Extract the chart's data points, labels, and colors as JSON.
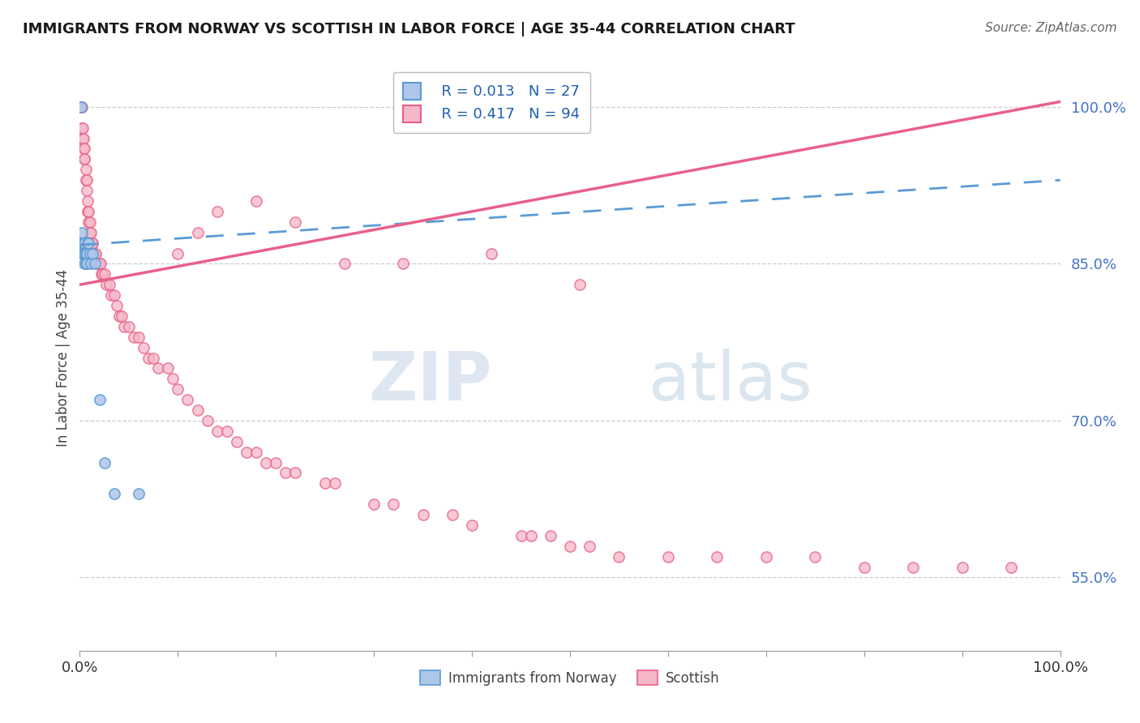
{
  "title": "IMMIGRANTS FROM NORWAY VS SCOTTISH IN LABOR FORCE | AGE 35-44 CORRELATION CHART",
  "source": "Source: ZipAtlas.com",
  "ylabel": "In Labor Force | Age 35-44",
  "xlim": [
    0.0,
    1.0
  ],
  "ylim": [
    0.48,
    1.04
  ],
  "yticks": [
    0.55,
    0.7,
    0.85,
    1.0
  ],
  "ytick_labels": [
    "55.0%",
    "70.0%",
    "85.0%",
    "100.0%"
  ],
  "norway_x": [
    0.001,
    0.002,
    0.002,
    0.003,
    0.003,
    0.003,
    0.004,
    0.004,
    0.004,
    0.005,
    0.005,
    0.005,
    0.005,
    0.006,
    0.006,
    0.007,
    0.007,
    0.008,
    0.009,
    0.01,
    0.011,
    0.013,
    0.015,
    0.02,
    0.025,
    0.035,
    0.06
  ],
  "norway_y": [
    1.0,
    0.88,
    0.87,
    0.87,
    0.86,
    0.86,
    0.86,
    0.86,
    0.86,
    0.87,
    0.86,
    0.86,
    0.85,
    0.86,
    0.85,
    0.86,
    0.85,
    0.87,
    0.87,
    0.86,
    0.85,
    0.86,
    0.85,
    0.72,
    0.66,
    0.63,
    0.63
  ],
  "scottish_x": [
    0.001,
    0.002,
    0.002,
    0.003,
    0.003,
    0.004,
    0.004,
    0.005,
    0.005,
    0.005,
    0.006,
    0.006,
    0.007,
    0.007,
    0.008,
    0.008,
    0.009,
    0.009,
    0.01,
    0.01,
    0.011,
    0.012,
    0.013,
    0.013,
    0.014,
    0.015,
    0.016,
    0.017,
    0.018,
    0.02,
    0.021,
    0.022,
    0.023,
    0.025,
    0.027,
    0.03,
    0.032,
    0.035,
    0.038,
    0.04,
    0.043,
    0.045,
    0.05,
    0.055,
    0.06,
    0.065,
    0.07,
    0.075,
    0.08,
    0.09,
    0.095,
    0.1,
    0.11,
    0.12,
    0.13,
    0.14,
    0.15,
    0.16,
    0.17,
    0.18,
    0.19,
    0.2,
    0.21,
    0.22,
    0.25,
    0.26,
    0.3,
    0.32,
    0.35,
    0.38,
    0.4,
    0.45,
    0.46,
    0.48,
    0.5,
    0.52,
    0.55,
    0.6,
    0.65,
    0.7,
    0.75,
    0.8,
    0.85,
    0.9,
    0.95,
    0.1,
    0.12,
    0.14,
    0.18,
    0.22,
    0.27,
    0.33,
    0.42,
    0.51
  ],
  "scottish_y": [
    1.0,
    1.0,
    0.98,
    0.98,
    0.97,
    0.97,
    0.96,
    0.96,
    0.95,
    0.95,
    0.94,
    0.93,
    0.93,
    0.92,
    0.91,
    0.9,
    0.9,
    0.89,
    0.89,
    0.88,
    0.88,
    0.87,
    0.87,
    0.87,
    0.86,
    0.86,
    0.86,
    0.85,
    0.85,
    0.85,
    0.85,
    0.84,
    0.84,
    0.84,
    0.83,
    0.83,
    0.82,
    0.82,
    0.81,
    0.8,
    0.8,
    0.79,
    0.79,
    0.78,
    0.78,
    0.77,
    0.76,
    0.76,
    0.75,
    0.75,
    0.74,
    0.73,
    0.72,
    0.71,
    0.7,
    0.69,
    0.69,
    0.68,
    0.67,
    0.67,
    0.66,
    0.66,
    0.65,
    0.65,
    0.64,
    0.64,
    0.62,
    0.62,
    0.61,
    0.61,
    0.6,
    0.59,
    0.59,
    0.59,
    0.58,
    0.58,
    0.57,
    0.57,
    0.57,
    0.57,
    0.57,
    0.56,
    0.56,
    0.56,
    0.56,
    0.86,
    0.88,
    0.9,
    0.91,
    0.89,
    0.85,
    0.85,
    0.86,
    0.83
  ],
  "norway_R": 0.013,
  "norway_N": 27,
  "scottish_R": 0.417,
  "scottish_N": 94,
  "norway_color": "#aec6e8",
  "scottish_color": "#f5b8c8",
  "norway_line_color": "#5b9bd5",
  "scottish_line_color": "#e8608a",
  "norway_trend_start_y": 0.868,
  "norway_trend_end_y": 0.93,
  "scottish_trend_start_y": 0.83,
  "scottish_trend_end_y": 1.005,
  "marker_size": 90,
  "background_color": "#ffffff",
  "grid_color": "#cccccc",
  "watermark_zip": "ZIP",
  "watermark_atlas": "atlas",
  "title_fontsize": 13,
  "source_fontsize": 11
}
